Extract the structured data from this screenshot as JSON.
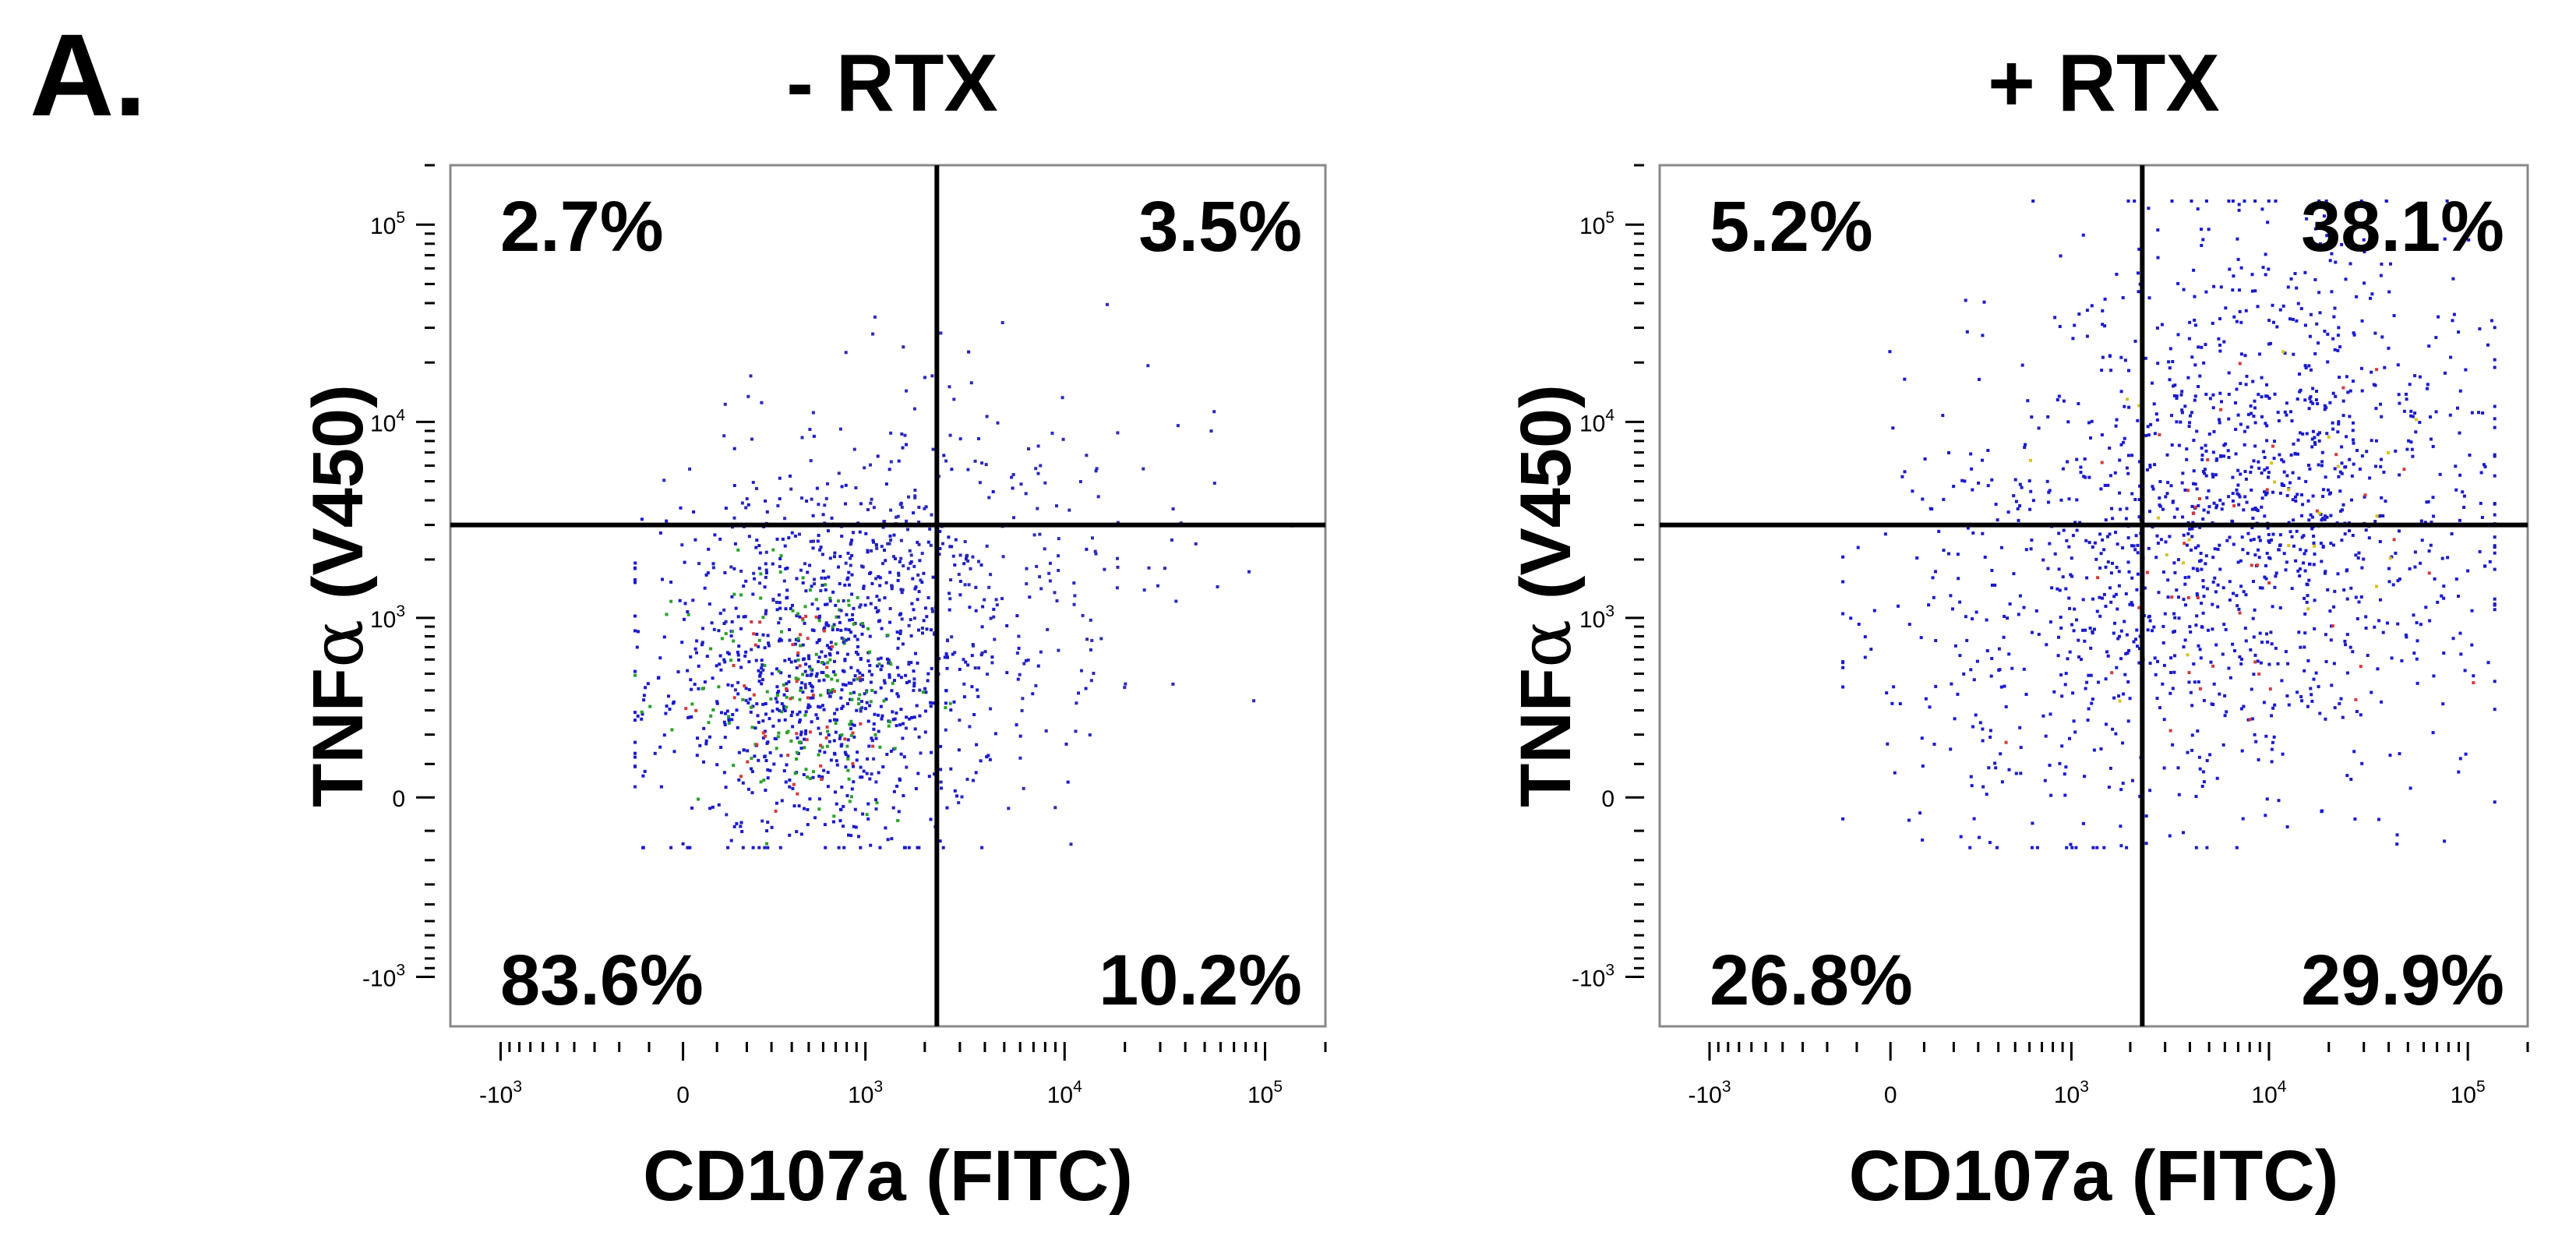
{
  "figure": {
    "panel_label": "A."
  },
  "chart_data": [
    {
      "type": "scatter",
      "title": "- RTX",
      "xlabel": "CD107a (FITC)",
      "ylabel_main": "TNF",
      "ylabel_greek": "α",
      "ylabel_rest": " (V450)",
      "x_scale": "biexponential",
      "y_scale": "biexponential",
      "xlim": [
        -1800,
        200000
      ],
      "ylim": [
        -1800,
        200000
      ],
      "x_ticks": [
        {
          "value": -1000,
          "base": "-10",
          "exp": "3"
        },
        {
          "value": 0,
          "base": "0",
          "exp": ""
        },
        {
          "value": 1000,
          "base": "10",
          "exp": "3"
        },
        {
          "value": 10000,
          "base": "10",
          "exp": "4"
        },
        {
          "value": 100000,
          "base": "10",
          "exp": "5"
        }
      ],
      "y_ticks": [
        {
          "value": -1000,
          "base": "-10",
          "exp": "3"
        },
        {
          "value": 0,
          "base": "0",
          "exp": ""
        },
        {
          "value": 1000,
          "base": "10",
          "exp": "3"
        },
        {
          "value": 10000,
          "base": "10",
          "exp": "4"
        },
        {
          "value": 100000,
          "base": "10",
          "exp": "5"
        }
      ],
      "gate": {
        "x": 2300,
        "y": 3000
      },
      "quadrants": {
        "upper_left": "2.7%",
        "upper_right": "3.5%",
        "lower_left": "83.6%",
        "lower_right": "10.2%"
      },
      "populations": [
        {
          "center": [
            600,
            500
          ],
          "spread": [
            1.0,
            1.1
          ],
          "count": 900,
          "color": "#1a1acc"
        },
        {
          "center": [
            500,
            400
          ],
          "spread": [
            0.7,
            0.8
          ],
          "count": 160,
          "color": "#2aa02a"
        },
        {
          "center": [
            450,
            350
          ],
          "spread": [
            0.5,
            0.6
          ],
          "count": 50,
          "color": "#d43a3a"
        },
        {
          "center": [
            3500,
            1800
          ],
          "spread": [
            1.4,
            1.2
          ],
          "count": 260,
          "color": "#2a2ab8"
        },
        {
          "center": [
            900,
            2800
          ],
          "spread": [
            1.0,
            1.0
          ],
          "count": 90,
          "color": "#2a2ab8"
        }
      ]
    },
    {
      "type": "scatter",
      "title": "+ RTX",
      "xlabel": "CD107a (FITC)",
      "ylabel_main": "TNF",
      "ylabel_greek": "α",
      "ylabel_rest": " (V450)",
      "x_scale": "biexponential",
      "y_scale": "biexponential",
      "xlim": [
        -1800,
        200000
      ],
      "ylim": [
        -1800,
        200000
      ],
      "x_ticks": [
        {
          "value": -1000,
          "base": "-10",
          "exp": "3"
        },
        {
          "value": 0,
          "base": "0",
          "exp": ""
        },
        {
          "value": 1000,
          "base": "10",
          "exp": "3"
        },
        {
          "value": 10000,
          "base": "10",
          "exp": "4"
        },
        {
          "value": 100000,
          "base": "10",
          "exp": "5"
        }
      ],
      "y_ticks": [
        {
          "value": -1000,
          "base": "-10",
          "exp": "3"
        },
        {
          "value": 0,
          "base": "0",
          "exp": ""
        },
        {
          "value": 1000,
          "base": "10",
          "exp": "3"
        },
        {
          "value": 10000,
          "base": "10",
          "exp": "4"
        },
        {
          "value": 100000,
          "base": "10",
          "exp": "5"
        }
      ],
      "gate": {
        "x": 2300,
        "y": 3000
      },
      "quadrants": {
        "upper_left": "5.2%",
        "upper_right": "38.1%",
        "lower_left": "26.8%",
        "lower_right": "29.9%"
      },
      "populations": [
        {
          "center": [
            700,
            700
          ],
          "spread": [
            1.2,
            1.3
          ],
          "count": 320,
          "color": "#1a1acc"
        },
        {
          "center": [
            8000,
            2500
          ],
          "spread": [
            1.5,
            1.6
          ],
          "count": 700,
          "color": "#1a1acc"
        },
        {
          "center": [
            10000,
            8000
          ],
          "spread": [
            1.3,
            1.4
          ],
          "count": 520,
          "color": "#1a1acc"
        },
        {
          "center": [
            6000,
            2000
          ],
          "spread": [
            1.2,
            1.2
          ],
          "count": 45,
          "color": "#d43a3a"
        },
        {
          "center": [
            9000,
            3000
          ],
          "spread": [
            1.2,
            1.2
          ],
          "count": 25,
          "color": "#d8c21a"
        }
      ]
    }
  ]
}
